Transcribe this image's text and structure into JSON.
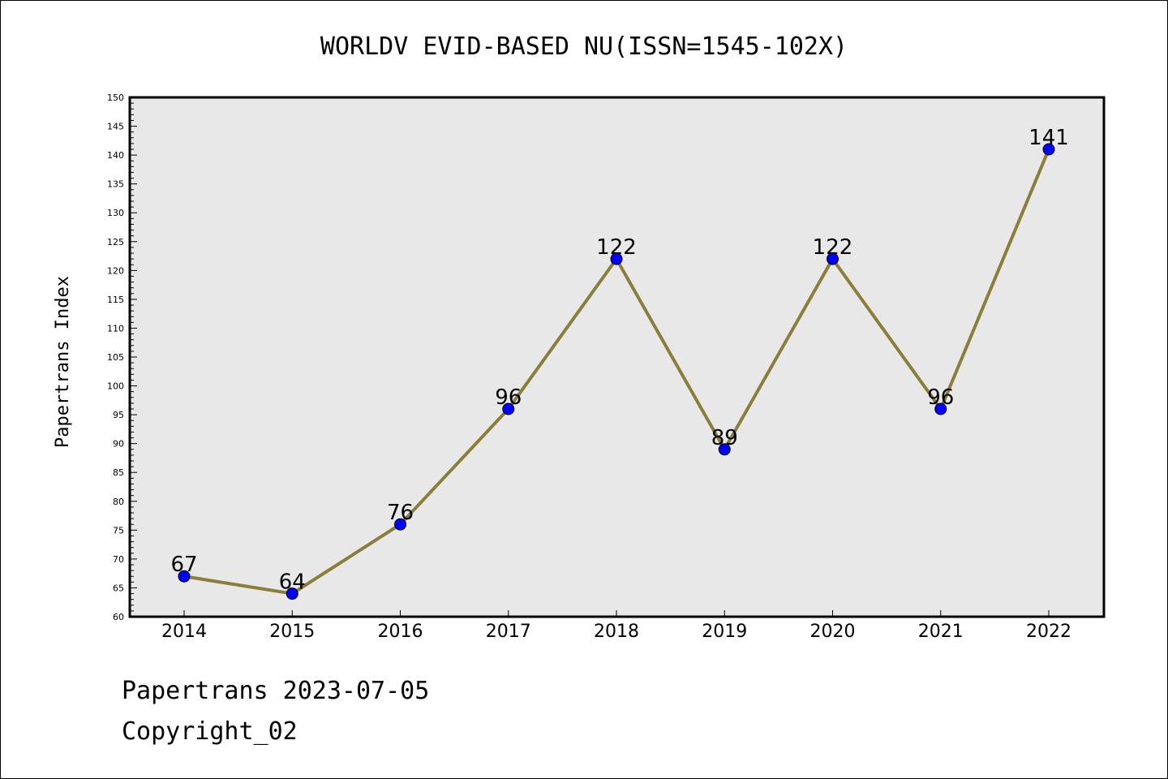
{
  "chart_data": {
    "type": "line",
    "title": "WORLDV EVID-BASED NU(ISSN=1545-102X)",
    "ylabel": "Papertrans Index",
    "xlabel": "",
    "categories": [
      "2014",
      "2015",
      "2016",
      "2017",
      "2018",
      "2019",
      "2020",
      "2021",
      "2022"
    ],
    "values": [
      67,
      64,
      76,
      96,
      122,
      89,
      122,
      96,
      141
    ],
    "ylim": [
      60,
      150
    ],
    "ytick_step": 5,
    "grid": false,
    "line_color": "#8b7d3a",
    "marker_color": "#0000ff",
    "plot_background": "#e8e8e8"
  },
  "footer": {
    "line1": "Papertrans 2023-07-05",
    "line2": "Copyright_02"
  }
}
